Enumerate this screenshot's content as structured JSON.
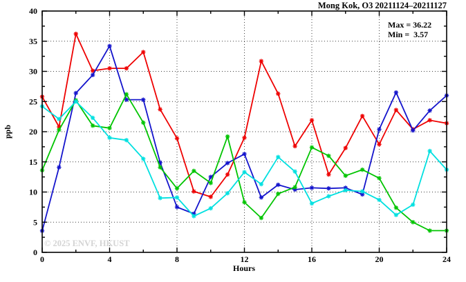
{
  "title": "Mong Kok, O3 20211124–20211127",
  "annotations": {
    "max_label": "Max = 36.22",
    "min_label": "Min =  3.57"
  },
  "watermark": "© 2025 ENVF, HKUST",
  "chart_data": {
    "type": "line",
    "title": "Mong Kok, O3 20211124–20211127",
    "xlabel": "Hours",
    "ylabel": "ppb",
    "xlim": [
      0,
      24
    ],
    "ylim": [
      0,
      40
    ],
    "xticks_major": [
      0,
      4,
      8,
      12,
      16,
      20,
      24
    ],
    "xticks_minor": [
      2,
      6,
      10,
      14,
      18,
      22
    ],
    "yticks_major": [
      0,
      5,
      10,
      15,
      20,
      25,
      30,
      35,
      40
    ],
    "yticks_minor": [
      2.5,
      7.5,
      12.5,
      17.5,
      22.5,
      27.5,
      32.5,
      37.5
    ],
    "grid": {
      "x_values": [
        4,
        8,
        12,
        16,
        20
      ],
      "y_values": [
        5,
        10,
        15,
        20,
        25,
        30,
        35
      ],
      "style": "dotted"
    },
    "legend_position": "top-right-inside",
    "max": 36.22,
    "min": 3.57,
    "x": [
      0,
      1,
      2,
      3,
      4,
      5,
      6,
      7,
      8,
      9,
      10,
      11,
      12,
      13,
      14,
      15,
      16,
      17,
      18,
      19,
      20,
      21,
      22,
      23,
      24
    ],
    "series": [
      {
        "name": "day-1-red",
        "color": "#ee0000",
        "values": [
          25.8,
          20.8,
          36.22,
          30.1,
          30.5,
          30.5,
          33.2,
          23.7,
          18.9,
          10.1,
          9.2,
          12.9,
          19.0,
          31.7,
          26.3,
          17.6,
          21.9,
          12.9,
          17.3,
          22.6,
          17.9,
          23.6,
          20.4,
          21.9,
          21.4
        ]
      },
      {
        "name": "day-2-blue",
        "color": "#1414cc",
        "values": [
          3.57,
          14.1,
          26.4,
          29.4,
          34.2,
          25.3,
          25.3,
          14.9,
          7.5,
          6.4,
          12.5,
          14.8,
          16.3,
          9.1,
          11.2,
          10.4,
          10.7,
          10.6,
          10.7,
          9.6,
          20.4,
          26.5,
          20.2,
          23.5,
          26.0
        ]
      },
      {
        "name": "day-3-green",
        "color": "#00c400",
        "values": [
          13.6,
          20.3,
          25.2,
          21.0,
          20.6,
          26.2,
          21.5,
          14.1,
          10.6,
          13.5,
          11.5,
          19.2,
          8.3,
          5.7,
          9.7,
          10.8,
          17.4,
          16.0,
          12.7,
          13.7,
          12.3,
          7.4,
          5.0,
          3.6,
          3.6
        ]
      },
      {
        "name": "day-4-cyan",
        "color": "#00e0e0",
        "values": [
          24.2,
          22.1,
          25.0,
          22.3,
          19.0,
          18.6,
          15.5,
          9.0,
          9.1,
          6.0,
          7.3,
          9.8,
          13.3,
          11.3,
          15.8,
          13.4,
          8.1,
          9.3,
          10.3,
          10.1,
          8.7,
          6.2,
          7.9,
          16.8,
          13.7
        ]
      }
    ]
  }
}
